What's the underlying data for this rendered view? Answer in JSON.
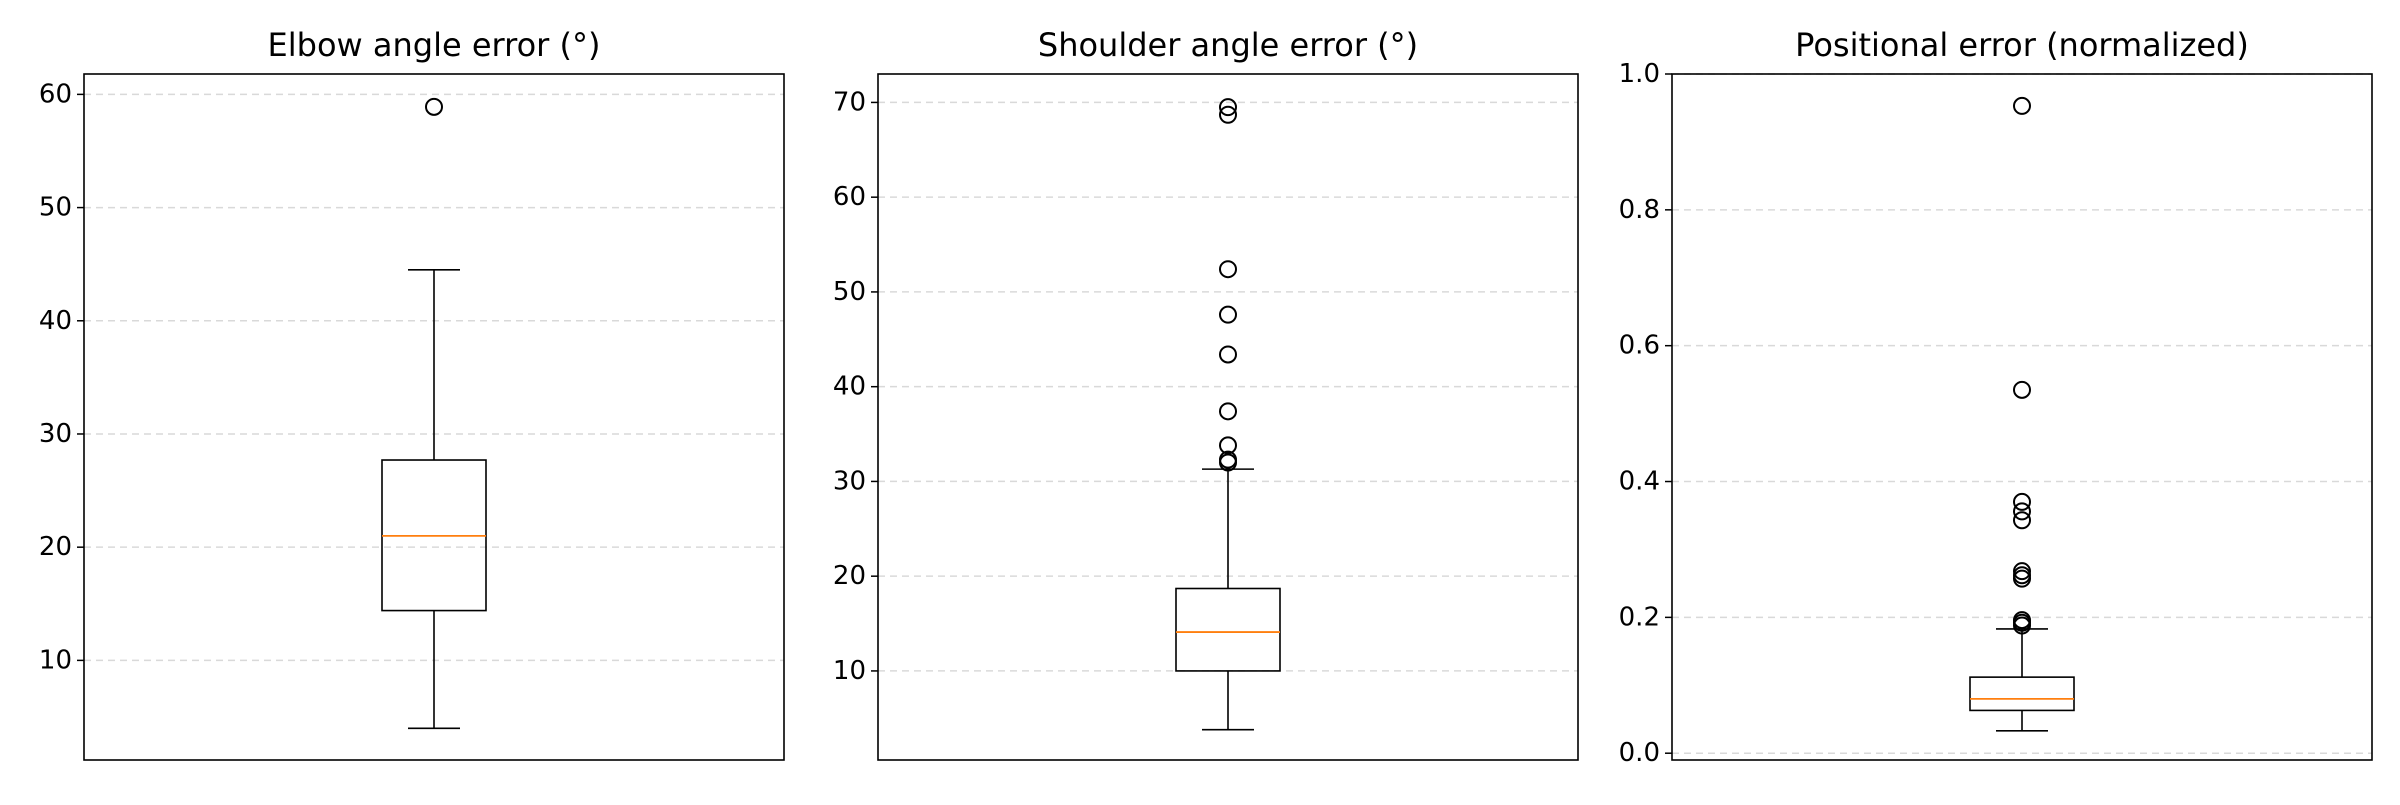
{
  "chart_data": [
    {
      "type": "box",
      "title": "Elbow angle error (°)",
      "xlabel": "",
      "ylabel": "",
      "ylim": [
        1.2,
        61.8
      ],
      "yticks": [
        10,
        20,
        30,
        40,
        50,
        60
      ],
      "ytick_labels": [
        "10",
        "20",
        "30",
        "40",
        "50",
        "60"
      ],
      "grid": "y-dashed",
      "box": {
        "whisker_low": 4.0,
        "q1": 14.4,
        "median": 21.0,
        "q3": 27.7,
        "whisker_high": 44.5
      },
      "outliers": [
        58.9
      ]
    },
    {
      "type": "box",
      "title": "Shoulder angle error (°)",
      "xlabel": "",
      "ylabel": "",
      "ylim": [
        0.6,
        73.0
      ],
      "yticks": [
        10,
        20,
        30,
        40,
        50,
        60,
        70
      ],
      "ytick_labels": [
        "10",
        "20",
        "30",
        "40",
        "50",
        "60",
        "70"
      ],
      "grid": "y-dashed",
      "box": {
        "whisker_low": 3.8,
        "q1": 10.0,
        "median": 14.1,
        "q3": 18.7,
        "whisker_high": 31.3
      },
      "outliers": [
        32.0,
        32.3,
        33.8,
        37.4,
        43.4,
        47.6,
        52.4,
        68.7,
        69.5
      ]
    },
    {
      "type": "box",
      "title": "Positional error (normalized)",
      "xlabel": "",
      "ylabel": "",
      "ylim": [
        -0.01,
        1.0
      ],
      "yticks": [
        0.0,
        0.2,
        0.4,
        0.6,
        0.8,
        1.0
      ],
      "ytick_labels": [
        "0.0",
        "0.2",
        "0.4",
        "0.6",
        "0.8",
        "1.0"
      ],
      "grid": "y-dashed",
      "box": {
        "whisker_low": 0.033,
        "q1": 0.063,
        "median": 0.08,
        "q3": 0.112,
        "whisker_high": 0.183
      },
      "outliers": [
        0.188,
        0.192,
        0.196,
        0.257,
        0.262,
        0.268,
        0.343,
        0.356,
        0.37,
        0.535,
        0.953
      ]
    }
  ],
  "colors": {
    "median": "#ff7f0e",
    "box": "#000000",
    "grid": "#d9d9d9",
    "background": "#ffffff"
  }
}
